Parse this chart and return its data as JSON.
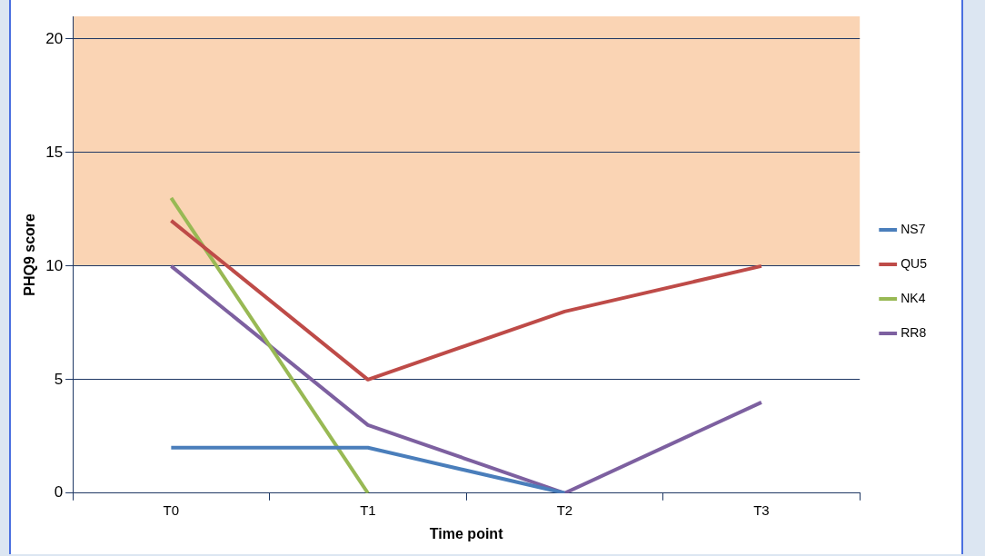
{
  "chart_data": {
    "type": "line",
    "xlabel": "Time point",
    "ylabel": "PHQ9 score",
    "categories": [
      "T0",
      "T1",
      "T2",
      "T3"
    ],
    "series": [
      {
        "name": "NS7",
        "color": "#4a7ebb",
        "values": [
          2,
          2,
          0,
          null
        ]
      },
      {
        "name": "QU5",
        "color": "#be4b48",
        "values": [
          12,
          5,
          8,
          10
        ]
      },
      {
        "name": "NK4",
        "color": "#98b954",
        "values": [
          13,
          0,
          null,
          null
        ]
      },
      {
        "name": "RR8",
        "color": "#7d60a0",
        "values": [
          10,
          3,
          0,
          4
        ]
      }
    ],
    "ylim": [
      0,
      21
    ],
    "yticks": [
      0,
      5,
      10,
      15,
      20
    ],
    "grid": "y",
    "legend": "right",
    "marker": "none",
    "line_style": "solid",
    "bands": [
      {
        "axis": "y",
        "from": 10,
        "to": 21,
        "color": "#fad4b4"
      }
    ]
  }
}
